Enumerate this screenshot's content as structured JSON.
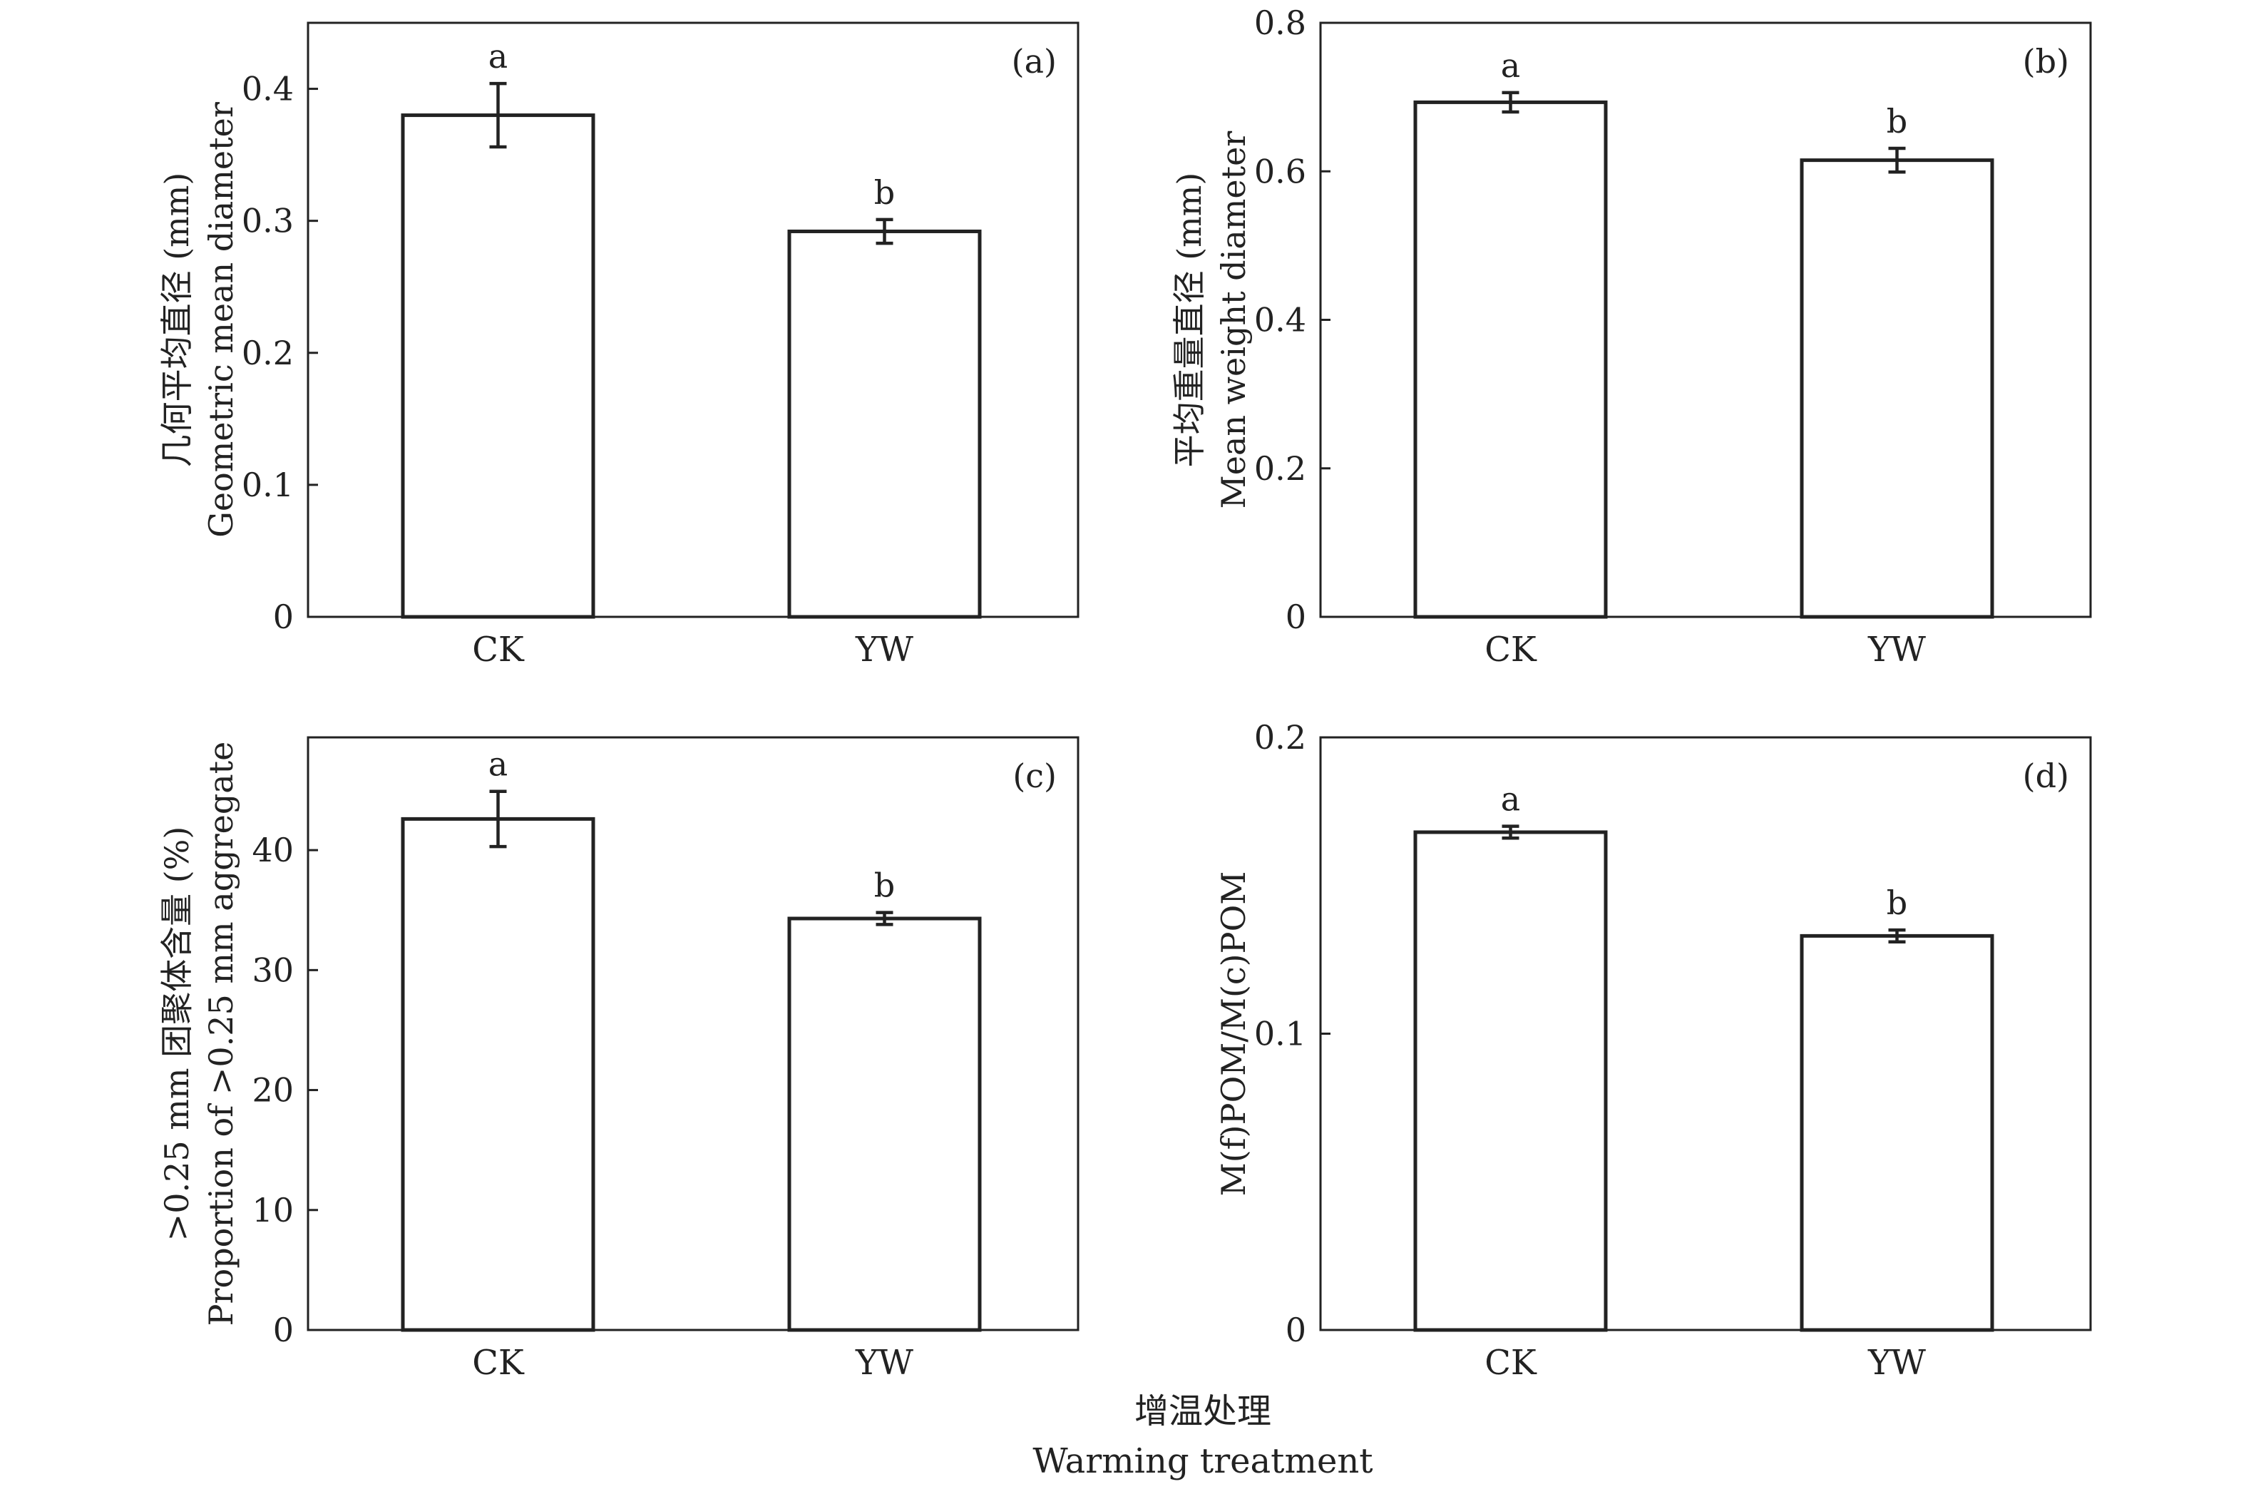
{
  "figure": {
    "xlabel_cn": "增温处理",
    "xlabel_en": "Warming treatment"
  },
  "chart_data": [
    {
      "type": "bar",
      "panel": "(a)",
      "categories": [
        "CK",
        "YW"
      ],
      "values": [
        0.38,
        0.292
      ],
      "errors": [
        0.024,
        0.009
      ],
      "significance": [
        "a",
        "b"
      ],
      "ylabel_cn": "几何平均直径 (mm)",
      "ylabel_en": "Geometric mean diameter",
      "ylim": [
        0,
        0.45
      ],
      "yticks": [
        0,
        0.1,
        0.2,
        0.3,
        0.4
      ],
      "ytick_labels": [
        "0",
        "0.1",
        "0.2",
        "0.3",
        "0.4"
      ]
    },
    {
      "type": "bar",
      "panel": "(b)",
      "categories": [
        "CK",
        "YW"
      ],
      "values": [
        0.693,
        0.615
      ],
      "errors": [
        0.013,
        0.016
      ],
      "significance": [
        "a",
        "b"
      ],
      "ylabel_cn": "平均重量直径 (mm)",
      "ylabel_en": "Mean weight diameter",
      "ylim": [
        0,
        0.8
      ],
      "yticks": [
        0,
        0.2,
        0.4,
        0.6,
        0.8
      ],
      "ytick_labels": [
        "0",
        "0.2",
        "0.4",
        "0.6",
        "0.8"
      ]
    },
    {
      "type": "bar",
      "panel": "(c)",
      "categories": [
        "CK",
        "YW"
      ],
      "values": [
        42.6,
        34.3
      ],
      "errors": [
        2.3,
        0.5
      ],
      "significance": [
        "a",
        "b"
      ],
      "ylabel_cn": ">0.25 mm 团聚体含量 (%)",
      "ylabel_en": "Proportion of >0.25 mm aggregate",
      "ylim": [
        0,
        49.4
      ],
      "yticks": [
        0,
        10,
        20,
        30,
        40
      ],
      "ytick_labels": [
        "0",
        "10",
        "20",
        "30",
        "40"
      ]
    },
    {
      "type": "bar",
      "panel": "(d)",
      "categories": [
        "CK",
        "YW"
      ],
      "values": [
        0.168,
        0.133
      ],
      "errors": [
        0.002,
        0.002
      ],
      "significance": [
        "a",
        "b"
      ],
      "ylabel_cn": "",
      "ylabel_en": "M(f)POM/M(c)POM",
      "ylim": [
        0,
        0.2
      ],
      "yticks": [
        0,
        0.1,
        0.2
      ],
      "ytick_labels": [
        "0",
        "0.1",
        "0.2"
      ]
    }
  ]
}
